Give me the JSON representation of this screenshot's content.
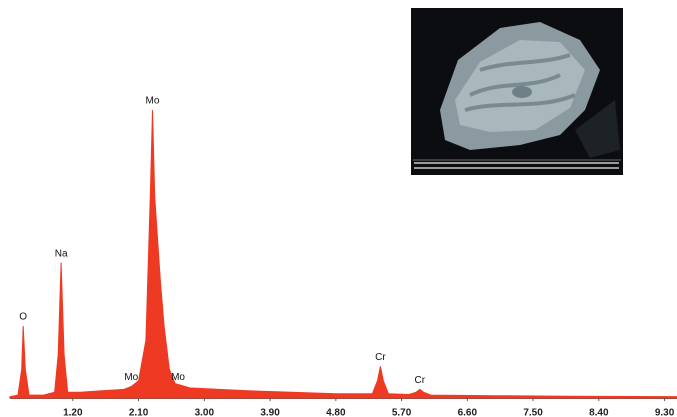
{
  "chart_data": {
    "type": "area",
    "color": "#ee3a22",
    "x": [
      0.34,
      0.45,
      0.5,
      0.52,
      0.55,
      0.6,
      0.8,
      0.95,
      1.0,
      1.04,
      1.08,
      1.13,
      1.3,
      1.6,
      1.9,
      2.0,
      2.1,
      2.2,
      2.26,
      2.29,
      2.32,
      2.36,
      2.4,
      2.45,
      2.52,
      2.6,
      2.8,
      3.2,
      3.6,
      4.2,
      4.8,
      5.3,
      5.37,
      5.41,
      5.45,
      5.52,
      5.8,
      5.9,
      5.95,
      6.0,
      6.1,
      7.0,
      8.0,
      9.47
    ],
    "values": [
      0.5,
      1,
      10,
      25,
      10,
      1,
      1,
      2,
      15,
      47,
      15,
      2,
      2,
      2.5,
      3,
      4,
      6,
      20,
      70,
      100,
      70,
      55,
      40,
      25,
      10,
      5,
      3.5,
      3,
      2.5,
      2,
      1.5,
      1.5,
      6,
      11,
      6,
      1.5,
      1.2,
      2,
      3,
      2,
      1,
      0.8,
      0.6,
      0.5
    ],
    "xlim": [
      0.34,
      9.47
    ],
    "ylim": [
      0,
      100
    ],
    "xticks": [
      {
        "value": 1.2,
        "label": "1.20"
      },
      {
        "value": 2.1,
        "label": "2.10"
      },
      {
        "value": 3.0,
        "label": "3.00"
      },
      {
        "value": 3.9,
        "label": "3.90"
      },
      {
        "value": 4.8,
        "label": "4.80"
      },
      {
        "value": 5.7,
        "label": "5.70"
      },
      {
        "value": 6.6,
        "label": "6.60"
      },
      {
        "value": 7.5,
        "label": "7.50"
      },
      {
        "value": 8.4,
        "label": "8.40"
      },
      {
        "value": 9.3,
        "label": "9.30"
      }
    ],
    "annotations": [
      {
        "text": "O",
        "x": 0.52,
        "y": 25
      },
      {
        "text": "Na",
        "x": 1.04,
        "y": 47
      },
      {
        "text": "Mo",
        "x": 2.29,
        "y": 100
      },
      {
        "text": "Mo",
        "x": 2.0,
        "y": 4
      },
      {
        "text": "Mo",
        "x": 2.64,
        "y": 4
      },
      {
        "text": "Cr",
        "x": 5.41,
        "y": 11
      },
      {
        "text": "Cr",
        "x": 5.95,
        "y": 3
      }
    ]
  }
}
